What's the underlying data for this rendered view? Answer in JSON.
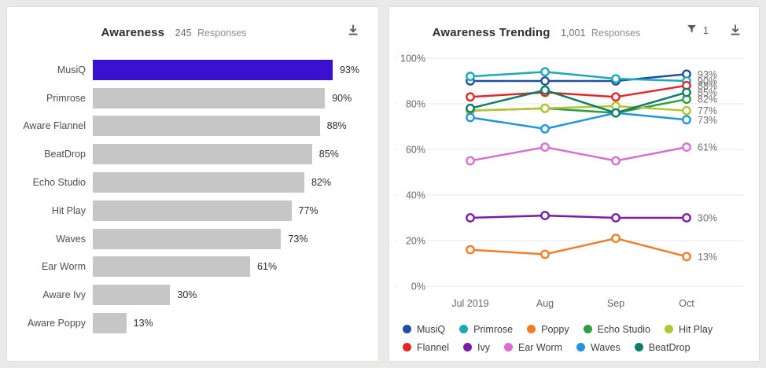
{
  "toolbar": {
    "filter_count": "1"
  },
  "colors": {
    "bar_highlight": "#3a11d0",
    "bar_default": "#c6c6c6",
    "grid": "#eaeaea",
    "axis_text": "#666666",
    "end_label": "#6f6f6f",
    "icon": "#5a5a5a"
  },
  "chart_data": [
    {
      "type": "bar",
      "orientation": "horizontal",
      "title": "Awareness",
      "responses_count": "245",
      "responses_word": "Responses",
      "categories": [
        "MusiQ",
        "Primrose",
        "Aware Flannel",
        "BeatDrop",
        "Echo Studio",
        "Hit Play",
        "Waves",
        "Ear Worm",
        "Aware Ivy",
        "Aware Poppy"
      ],
      "values": [
        93,
        90,
        88,
        85,
        82,
        77,
        73,
        61,
        30,
        13
      ],
      "value_suffix": "%",
      "highlight_category": "MusiQ",
      "xlim": [
        0,
        100
      ],
      "grid": false
    },
    {
      "type": "line",
      "title": "Awareness Trending",
      "responses_count": "1,001",
      "responses_word": "Responses",
      "x": [
        "Jul 2019",
        "Aug",
        "Sep",
        "Oct"
      ],
      "y_ticks": [
        "0%",
        "20%",
        "40%",
        "60%",
        "80%",
        "100%"
      ],
      "y_tick_values": [
        0,
        20,
        40,
        60,
        80,
        100
      ],
      "ylim": [
        0,
        100
      ],
      "grid": true,
      "legend_position": "bottom",
      "series": [
        {
          "name": "MusiQ",
          "color": "#1d50a0",
          "values": [
            90,
            90,
            90,
            93
          ],
          "end_label": "93%"
        },
        {
          "name": "Primrose",
          "color": "#1ba9b9",
          "values": [
            92,
            94,
            91,
            90
          ],
          "end_label": "90%"
        },
        {
          "name": "Poppy",
          "color": "#f07e26",
          "values": [
            16,
            14,
            21,
            13
          ],
          "end_label": "13%"
        },
        {
          "name": "Echo Studio",
          "color": "#2f9e41",
          "values": [
            77,
            78,
            76,
            82
          ],
          "end_label": "82%"
        },
        {
          "name": "Hit Play",
          "color": "#b4c433",
          "values": [
            77,
            78,
            79,
            77
          ],
          "end_label": "77%"
        },
        {
          "name": "Flannel",
          "color": "#e02828",
          "values": [
            83,
            85,
            83,
            88
          ],
          "end_label": "88%"
        },
        {
          "name": "Ivy",
          "color": "#7a1ca5",
          "values": [
            30,
            31,
            30,
            30
          ],
          "end_label": "30%"
        },
        {
          "name": "Ear Worm",
          "color": "#d96fd1",
          "values": [
            55,
            61,
            55,
            61
          ],
          "end_label": "61%"
        },
        {
          "name": "Waves",
          "color": "#2196dd",
          "values": [
            74,
            69,
            76,
            73
          ],
          "end_label": "73%"
        },
        {
          "name": "BeatDrop",
          "color": "#0e7d68",
          "values": [
            78,
            86,
            76,
            85
          ],
          "end_label": "85%"
        }
      ]
    }
  ]
}
